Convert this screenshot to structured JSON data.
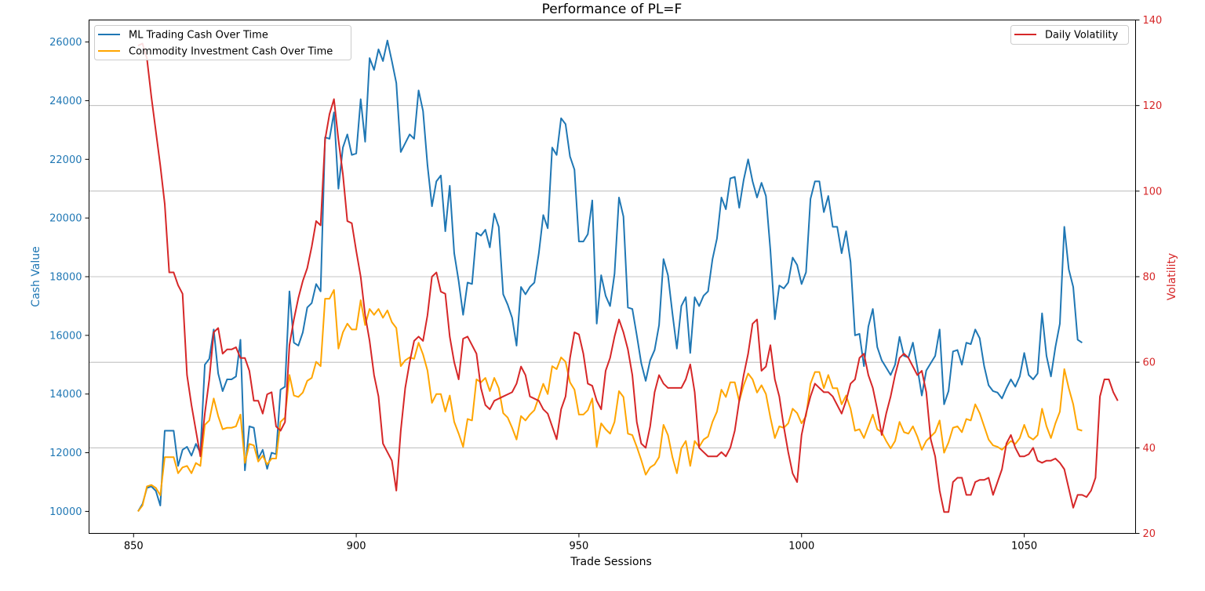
{
  "chart_data": {
    "type": "line",
    "title": "Performance of PL=F",
    "xlabel": "Trade Sessions",
    "ylabel_left": "Cash Value",
    "ylabel_right": "Volatility",
    "xlim": [
      840,
      1075
    ],
    "ylim_left": [
      9250,
      26750
    ],
    "ylim_right": [
      20,
      140
    ],
    "x_ticks": [
      850,
      900,
      950,
      1000,
      1050
    ],
    "y_ticks_left": [
      10000,
      12000,
      14000,
      16000,
      18000,
      20000,
      22000,
      24000,
      26000
    ],
    "y_ticks_right": [
      20,
      40,
      60,
      80,
      100,
      120,
      140
    ],
    "grid": "horizontal, right axis",
    "legend_left_position": "upper-left",
    "legend_right_position": "upper-right",
    "colors": {
      "ml": "#1f77b4",
      "commodity": "#ffa500",
      "volatility": "#d62728",
      "left_axis": "#1f77b4",
      "right_axis": "#d62728"
    },
    "series_left": [
      {
        "name": "ML Trading Cash Over Time",
        "color": "#1f77b4",
        "x_start": 851,
        "values": [
          10000,
          10250,
          10800,
          10850,
          10700,
          10200,
          12750,
          12750,
          12750,
          11550,
          12100,
          12200,
          11900,
          12300,
          12000,
          15000,
          15200,
          16200,
          14700,
          14100,
          14500,
          14500,
          14600,
          15850,
          11400,
          12900,
          12850,
          11800,
          12100,
          11450,
          12000,
          11950,
          14150,
          14250,
          17500,
          15750,
          15650,
          16100,
          16950,
          17100,
          17750,
          17500,
          22750,
          22700,
          23600,
          21000,
          22400,
          22850,
          22150,
          22200,
          24050,
          22600,
          25450,
          25050,
          25750,
          25350,
          26050,
          25350,
          24600,
          22250,
          22550,
          22850,
          22700,
          24350,
          23650,
          21800,
          20400,
          21250,
          21450,
          19550,
          21100,
          18800,
          17850,
          16700,
          17800,
          17750,
          19500,
          19400,
          19600,
          19000,
          20150,
          19700,
          17400,
          17050,
          16600,
          15650,
          17650,
          17400,
          17650,
          17800,
          18800,
          20100,
          19650,
          22400,
          22150,
          23400,
          23200,
          22100,
          21650,
          19200,
          19200,
          19450,
          20600,
          16400,
          18050,
          17350,
          17000,
          18100,
          20700,
          20050,
          16950,
          16900,
          16000,
          15050,
          14450,
          15150,
          15500,
          16350,
          18600,
          18050,
          16750,
          15550,
          17000,
          17300,
          15400,
          17300,
          17000,
          17350,
          17500,
          18600,
          19300,
          20700,
          20300,
          21350,
          21400,
          20350,
          21300,
          22000,
          21250,
          20700,
          21200,
          20750,
          18900,
          16550,
          17700,
          17600,
          17800,
          18650,
          18400,
          17750,
          18150,
          20650,
          21250,
          21250,
          20200,
          20750,
          19700,
          19700,
          18800,
          19550,
          18500,
          16000,
          16050,
          14950,
          16300,
          16900,
          15600,
          15150,
          14900,
          14650,
          15000,
          15950,
          15300,
          15250,
          15750,
          14900,
          13950,
          14800,
          15050,
          15300,
          16200,
          13650,
          14100,
          15450,
          15500,
          15000,
          15750,
          15700,
          16200,
          15900,
          14950,
          14300,
          14100,
          14050,
          13850,
          14200,
          14500,
          14250,
          14600,
          15400,
          14650,
          14500,
          14700,
          16750,
          15300,
          14600,
          15600,
          16400,
          19700,
          18250,
          17650,
          15850,
          15750
        ]
      },
      {
        "name": "Commodity Investment Cash Over Time",
        "color": "#ffa500",
        "x_start": 851,
        "values": [
          10000,
          10200,
          10850,
          10900,
          10800,
          10550,
          11850,
          11850,
          11850,
          11300,
          11500,
          11550,
          11300,
          11650,
          11550,
          12950,
          13100,
          13850,
          13250,
          12800,
          12850,
          12850,
          12900,
          13300,
          11650,
          12300,
          12250,
          11700,
          11900,
          11600,
          11800,
          11800,
          13050,
          13200,
          14650,
          13950,
          13900,
          14050,
          14450,
          14550,
          15100,
          14950,
          17250,
          17250,
          17550,
          15550,
          16100,
          16400,
          16200,
          16200,
          17200,
          16350,
          16900,
          16700,
          16900,
          16600,
          16850,
          16450,
          16250,
          14950,
          15150,
          15250,
          15200,
          15750,
          15350,
          14800,
          13700,
          14000,
          14000,
          13400,
          13950,
          13050,
          12650,
          12200,
          13150,
          13100,
          14500,
          14400,
          14550,
          14100,
          14550,
          14200,
          13350,
          13200,
          12850,
          12450,
          13250,
          13100,
          13300,
          13450,
          13900,
          14350,
          14000,
          14950,
          14850,
          15250,
          15100,
          14400,
          14150,
          13300,
          13300,
          13450,
          13850,
          12200,
          13000,
          12800,
          12650,
          13050,
          14100,
          13900,
          12650,
          12600,
          12200,
          11750,
          11250,
          11500,
          11600,
          11850,
          12950,
          12600,
          11850,
          11300,
          12150,
          12400,
          11550,
          12400,
          12200,
          12450,
          12550,
          13050,
          13400,
          14150,
          13900,
          14400,
          14400,
          13750,
          14300,
          14700,
          14500,
          14050,
          14300,
          14000,
          13200,
          12500,
          12900,
          12850,
          13000,
          13500,
          13350,
          13000,
          13250,
          14350,
          14750,
          14750,
          14200,
          14650,
          14200,
          14200,
          13650,
          13950,
          13500,
          12750,
          12800,
          12500,
          12900,
          13300,
          12800,
          12700,
          12400,
          12150,
          12400,
          13050,
          12700,
          12650,
          12900,
          12550,
          12100,
          12400,
          12550,
          12700,
          13100,
          12000,
          12350,
          12850,
          12900,
          12700,
          13150,
          13100,
          13650,
          13350,
          12900,
          12450,
          12250,
          12200,
          12100,
          12250,
          12400,
          12300,
          12500,
          12950,
          12550,
          12450,
          12600,
          13500,
          12900,
          12500,
          13000,
          13400,
          14850,
          14200,
          13650,
          12800,
          12750
        ]
      }
    ],
    "series_right": [
      {
        "name": "Daily Volatility",
        "color": "#d62728",
        "x_start": 851,
        "values": [
          134,
          134.5,
          131,
          122,
          114,
          106,
          97,
          81,
          81,
          78,
          76,
          57,
          50,
          44,
          38,
          48,
          56,
          67,
          68,
          62,
          63,
          63,
          63.5,
          61,
          61,
          58,
          51,
          51,
          48,
          52.5,
          53,
          45,
          44,
          46,
          64,
          70,
          75,
          79,
          82,
          87,
          93,
          92,
          112,
          118,
          121.5,
          112,
          104,
          93,
          92.5,
          86,
          80,
          71,
          65,
          57,
          52,
          41,
          39,
          37,
          30,
          44,
          54,
          60,
          65,
          66,
          65,
          71,
          80,
          81,
          76.5,
          76,
          66,
          60,
          56,
          65.5,
          66,
          64,
          62,
          54,
          50,
          49,
          51,
          51.5,
          52,
          52.5,
          53,
          55,
          59,
          57,
          52,
          51.5,
          51,
          49,
          48,
          45,
          42,
          49,
          52,
          61,
          67,
          66.5,
          62,
          55,
          54.5,
          51,
          49,
          58,
          61,
          66,
          70,
          67,
          63,
          57,
          46,
          41,
          40,
          45,
          53,
          57,
          55,
          54,
          54,
          54,
          54,
          56,
          59.5,
          53,
          40,
          39,
          38,
          38,
          38,
          39,
          38,
          40,
          44,
          51,
          57,
          62,
          69,
          70,
          58,
          59,
          64,
          56,
          52,
          45,
          39,
          34,
          32,
          43,
          48,
          52,
          55,
          54,
          53,
          53,
          52,
          50,
          48,
          51,
          55,
          56,
          61,
          62,
          57,
          54,
          49,
          43,
          48,
          52,
          57,
          61,
          62,
          61,
          59,
          57,
          58,
          53,
          42,
          38,
          30,
          25,
          25,
          32,
          33,
          33,
          29,
          29,
          32,
          32.5,
          32.5,
          33,
          29,
          32,
          35,
          41,
          43,
          40,
          38,
          38,
          38.5,
          40,
          37,
          36.5,
          37,
          37,
          37.5,
          36.5,
          35,
          30.5,
          26,
          29,
          29,
          28.5,
          30,
          33,
          52,
          56,
          56,
          53,
          51
        ]
      }
    ]
  }
}
